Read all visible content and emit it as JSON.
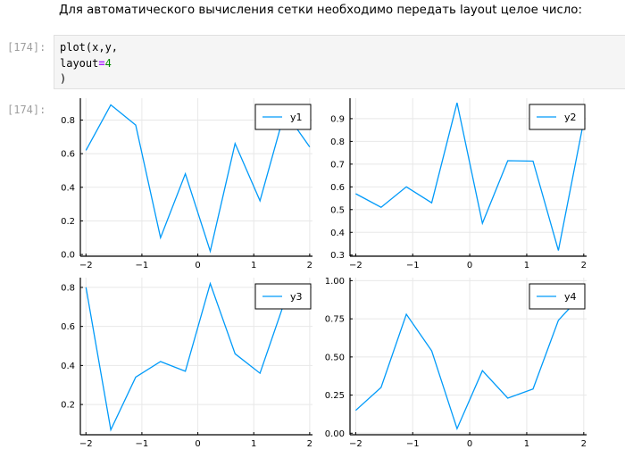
{
  "markdown": {
    "text": "Для автоматического вычисления сетки необходимо передать layout целое число:"
  },
  "input_cell": {
    "prompt": "[174]:",
    "line1": "plot(x,y,",
    "line2_key": "layout",
    "line2_op": "=",
    "line2_val": "4",
    "line3": ")"
  },
  "output_cell": {
    "prompt": "[174]:"
  },
  "colors": {
    "series": "#009af9",
    "grid": "#e8e8e8",
    "axis": "#000000"
  },
  "chart_data": [
    {
      "type": "line",
      "legend": "y1",
      "legend_position": "top-right",
      "grid": true,
      "xlim": [
        -2.1,
        2.05
      ],
      "ylim": [
        -0.01,
        0.93
      ],
      "x_ticks": [
        -2,
        -1,
        0,
        1,
        2
      ],
      "x_tick_labels": [
        "−2",
        "−1",
        "0",
        "1",
        "2"
      ],
      "y_ticks": [
        0.0,
        0.2,
        0.4,
        0.6,
        0.8
      ],
      "y_tick_labels": [
        "0.0",
        "0.2",
        "0.4",
        "0.6",
        "0.8"
      ],
      "x": [
        -2.0,
        -1.5556,
        -1.1111,
        -0.6667,
        -0.2222,
        0.2222,
        0.6667,
        1.1111,
        1.5556,
        2.0
      ],
      "y": [
        0.62,
        0.89,
        0.77,
        0.1,
        0.48,
        0.02,
        0.66,
        0.32,
        0.85,
        0.64
      ]
    },
    {
      "type": "line",
      "legend": "y2",
      "legend_position": "top-right",
      "grid": true,
      "xlim": [
        -2.1,
        2.05
      ],
      "ylim": [
        0.295,
        0.99
      ],
      "x_ticks": [
        -2,
        -1,
        0,
        1,
        2
      ],
      "x_tick_labels": [
        "−2",
        "−1",
        "0",
        "1",
        "2"
      ],
      "y_ticks": [
        0.3,
        0.4,
        0.5,
        0.6,
        0.7,
        0.8,
        0.9
      ],
      "y_tick_labels": [
        "0.3",
        "0.4",
        "0.5",
        "0.6",
        "0.7",
        "0.8",
        "0.9"
      ],
      "x": [
        -2.0,
        -1.5556,
        -1.1111,
        -0.6667,
        -0.2222,
        0.2222,
        0.6667,
        1.1111,
        1.5556,
        2.0
      ],
      "y": [
        0.57,
        0.51,
        0.6,
        0.53,
        0.97,
        0.44,
        0.715,
        0.713,
        0.32,
        0.89
      ]
    },
    {
      "type": "line",
      "legend": "y3",
      "legend_position": "top-right",
      "grid": true,
      "xlim": [
        -2.1,
        2.05
      ],
      "ylim": [
        0.045,
        0.85
      ],
      "x_ticks": [
        -2,
        -1,
        0,
        1,
        2
      ],
      "x_tick_labels": [
        "−2",
        "−1",
        "0",
        "1",
        "2"
      ],
      "y_ticks": [
        0.2,
        0.4,
        0.6,
        0.8
      ],
      "y_tick_labels": [
        "0.2",
        "0.4",
        "0.6",
        "0.8"
      ],
      "x": [
        -2.0,
        -1.5556,
        -1.1111,
        -0.6667,
        -0.2222,
        0.2222,
        0.6667,
        1.1111,
        1.5556,
        2.0
      ],
      "y": [
        0.8,
        0.07,
        0.34,
        0.42,
        0.37,
        0.82,
        0.46,
        0.36,
        0.73,
        0.8
      ]
    },
    {
      "type": "line",
      "legend": "y4",
      "legend_position": "top-right",
      "grid": true,
      "xlim": [
        -2.1,
        2.05
      ],
      "ylim": [
        -0.01,
        1.02
      ],
      "x_ticks": [
        -2,
        -1,
        0,
        1,
        2
      ],
      "x_tick_labels": [
        "−2",
        "−1",
        "0",
        "1",
        "2"
      ],
      "y_ticks": [
        0.0,
        0.25,
        0.5,
        0.75,
        1.0
      ],
      "y_tick_labels": [
        "0.00",
        "0.25",
        "0.50",
        "0.75",
        "1.00"
      ],
      "x": [
        -2.0,
        -1.5556,
        -1.1111,
        -0.6667,
        -0.2222,
        0.2222,
        0.6667,
        1.1111,
        1.5556,
        2.0
      ],
      "y": [
        0.15,
        0.3,
        0.78,
        0.54,
        0.03,
        0.41,
        0.23,
        0.29,
        0.74,
        0.92
      ]
    }
  ]
}
